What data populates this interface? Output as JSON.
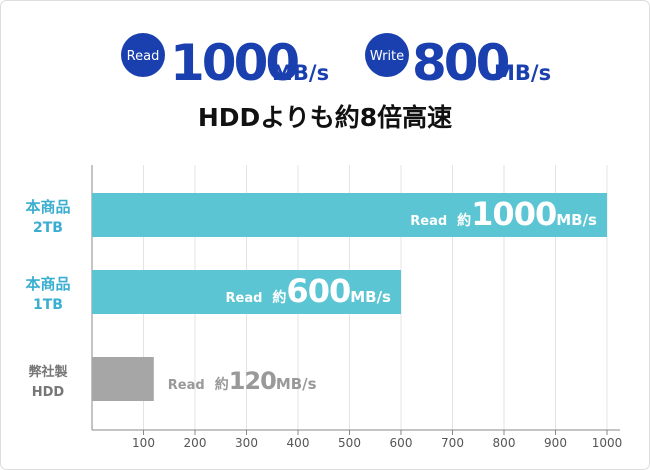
{
  "header": {
    "read_label": "Read",
    "read_value": 1000,
    "unit": "MB/s",
    "write_label": "Write",
    "write_value": 800,
    "subtitle": "HDDよりも約8倍高速"
  },
  "chart_data": {
    "type": "hbar",
    "categories": [
      [
        "本商品",
        "2TB"
      ],
      [
        "本商品",
        "1TB"
      ],
      [
        "弊社製",
        "HDD"
      ]
    ],
    "values": [
      1000,
      600,
      120
    ],
    "colors": [
      "#5bc5d3",
      "#5bc5d3",
      "#a6a6a6"
    ],
    "label_prefix": "Read",
    "label_approx": "約",
    "unit": "MB/s",
    "xlim": [
      0,
      1000
    ],
    "xticks": [
      100,
      200,
      300,
      400,
      500,
      600,
      700,
      800,
      900,
      1000
    ],
    "grid": true
  }
}
